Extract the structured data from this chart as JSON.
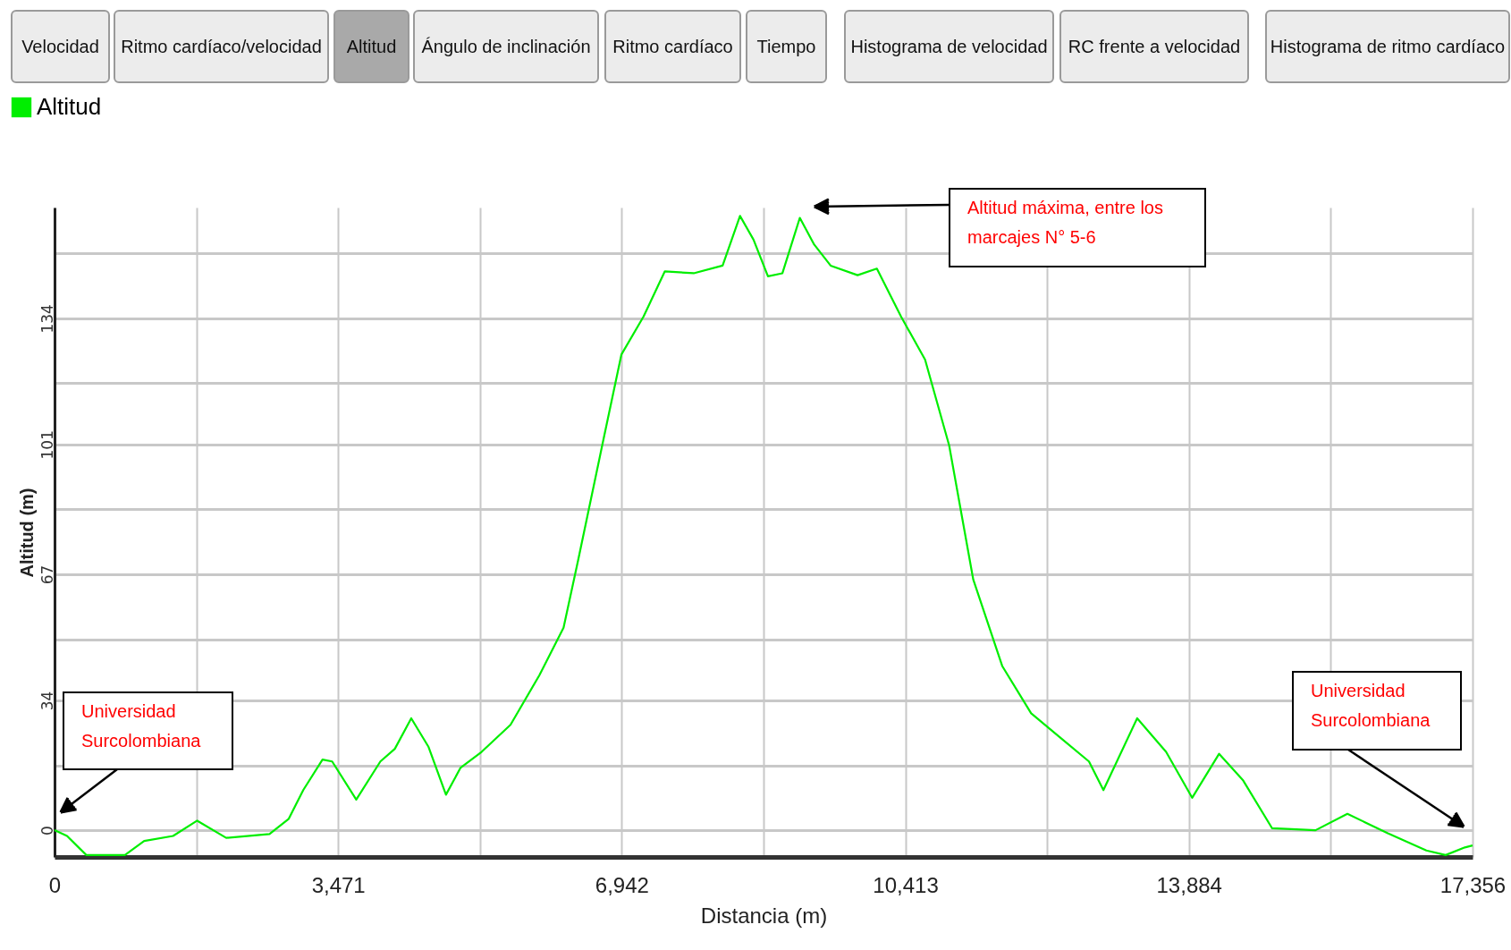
{
  "chart_data": {
    "type": "line",
    "xlabel": "Distancia (m)",
    "ylabel": "Altitud (m)",
    "xlim": [
      0,
      17356
    ],
    "ylim": [
      -7,
      163
    ],
    "xticks": [
      0,
      {
        "value": 1736,
        "label": null
      },
      {
        "value": 3471,
        "label": "3,471"
      },
      {
        "value": 5207,
        "label": null
      },
      {
        "value": 6942,
        "label": "6,942"
      },
      {
        "value": 8678,
        "label": null
      },
      {
        "value": 10413,
        "label": "10,413"
      },
      {
        "value": 12149,
        "label": null
      },
      {
        "value": 13884,
        "label": "13,884"
      },
      {
        "value": 15620,
        "label": null
      },
      {
        "value": 17356,
        "label": "17,356"
      }
    ],
    "yticks": [
      0,
      {
        "value": 17,
        "label": null
      },
      34,
      {
        "value": 50,
        "label": null
      },
      67,
      {
        "value": 84,
        "label": null
      },
      101,
      {
        "value": 117,
        "label": null
      },
      134,
      {
        "value": 151,
        "label": null
      }
    ],
    "grid": true,
    "legend": "top left",
    "marker": "none",
    "line_style": "solid",
    "x": [
      0,
      153,
      389,
      861,
      1097,
      1451,
      1746,
      2101,
      2631,
      2867,
      3044,
      3280,
      3398,
      3693,
      3988,
      4165,
      4366,
      4578,
      4791,
      4968,
      5227,
      5581,
      5935,
      6230,
      6408,
      6703,
      6938,
      7210,
      7470,
      7823,
      8177,
      8390,
      8555,
      8732,
      8909,
      9122,
      9298,
      9499,
      9829,
      10065,
      10360,
      10655,
      10950,
      11245,
      11599,
      11953,
      12307,
      12661,
      12838,
      13251,
      13605,
      13924,
      14254,
      14549,
      14903,
      15434,
      15824,
      16319,
      16791,
      17027,
      17262,
      17356
    ],
    "series": [
      {
        "name": "Altitud",
        "color": "#00ee00",
        "values": [
          0,
          -1.5,
          -6.5,
          -6.5,
          -2.8,
          -1.5,
          2.5,
          -2,
          -1,
          3,
          10.5,
          18.5,
          18,
          8,
          18,
          21.3,
          29.3,
          21.8,
          9.3,
          16.3,
          20.5,
          27.6,
          40.6,
          53,
          70.6,
          100.7,
          124.5,
          134.5,
          146.3,
          145.8,
          147.8,
          160.8,
          154.6,
          145,
          145.8,
          160.3,
          153.3,
          147.8,
          145.3,
          147,
          134.5,
          123.2,
          100.7,
          65.6,
          43,
          30.6,
          24.3,
          18,
          10.5,
          29.3,
          20.5,
          8.5,
          20,
          13,
          0.5,
          0,
          4.3,
          -0.8,
          -5.3,
          -6.5,
          -4.5,
          -4
        ]
      }
    ],
    "annotations": [
      "Velocidad",
      "Ritmo cardíaco/velocidad",
      "Altitud",
      "Ángulo de inclinación",
      "Ritmo cardíaco",
      "Tiempo",
      "Histograma de velocidad",
      "RC frente a velocidad",
      "Histograma de ritmo cardíaco",
      "Altitud máxima, entre los\nmarcajes N° 5-6",
      "Universidad\nSurcolombiana",
      "Universidad\nSurcolombiana"
    ]
  }
}
